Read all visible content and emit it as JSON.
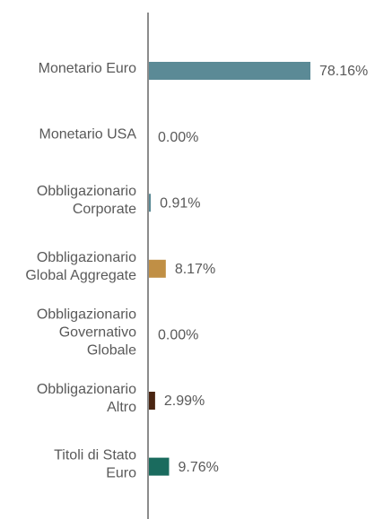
{
  "chart_data": {
    "type": "bar",
    "orientation": "horizontal",
    "categories": [
      "Monetario Euro",
      "Monetario USA",
      "Obbligazionario\nCorporate",
      "Obbligazionario\nGlobal Aggregate",
      "Obbligazionario\nGovernativo\nGlobale",
      "Obbligazionario\nAltro",
      "Titoli di Stato\nEuro"
    ],
    "values": [
      78.16,
      0.0,
      0.91,
      8.17,
      0.0,
      2.99,
      9.76
    ],
    "value_labels": [
      "78.16%",
      "0.00%",
      "0.91%",
      "8.17%",
      "0.00%",
      "2.99%",
      "9.76%"
    ],
    "colors": [
      "#5b8a96",
      "#5b8a96",
      "#5b8a96",
      "#c08f45",
      "#5b8a96",
      "#4a2512",
      "#1a6b5e"
    ]
  }
}
